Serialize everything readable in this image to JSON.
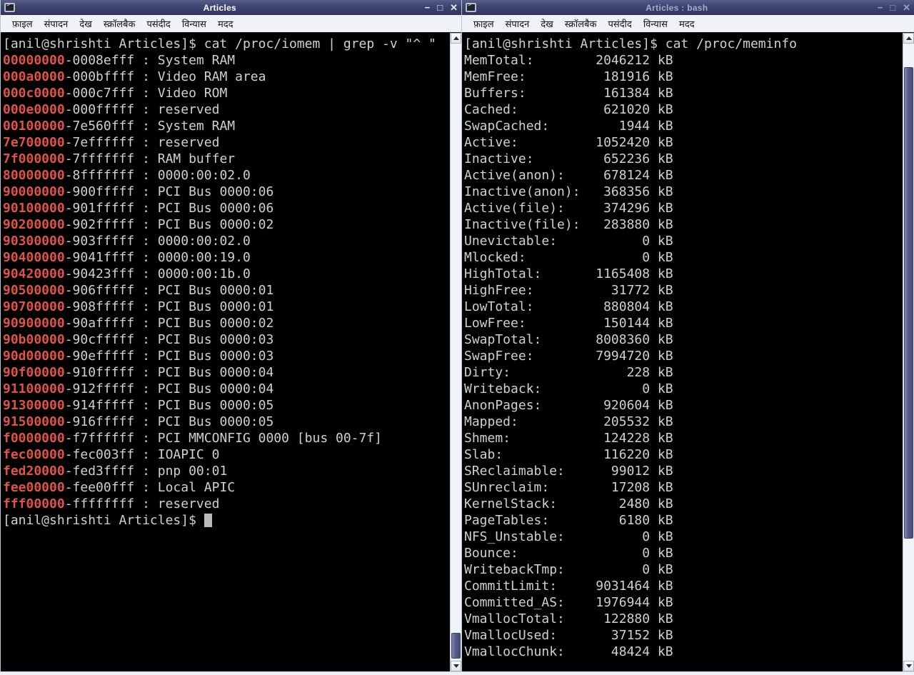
{
  "windows": {
    "left": {
      "title": "Articles",
      "active": true,
      "menu": [
        "फ़ाइल",
        "संपादन",
        "देख",
        "स्क्रॉलबैक",
        "पसंदीद",
        "विन्यास",
        "मदद"
      ],
      "controls": {
        "minimize": "−",
        "maximize": "□",
        "close": "✕"
      },
      "terminal": {
        "command_line": {
          "prompt": "[anil@shrishti Articles]$",
          "command": "cat /proc/iomem | grep -v \"^ \""
        },
        "iomem": [
          {
            "start": "00000000",
            "end": "0008efff",
            "desc": "System RAM"
          },
          {
            "start": "000a0000",
            "end": "000bffff",
            "desc": "Video RAM area"
          },
          {
            "start": "000c0000",
            "end": "000c7fff",
            "desc": "Video ROM"
          },
          {
            "start": "000e0000",
            "end": "000fffff",
            "desc": "reserved"
          },
          {
            "start": "00100000",
            "end": "7e560fff",
            "desc": "System RAM"
          },
          {
            "start": "7e700000",
            "end": "7effffff",
            "desc": "reserved"
          },
          {
            "start": "7f000000",
            "end": "7fffffff",
            "desc": "RAM buffer"
          },
          {
            "start": "80000000",
            "end": "8fffffff",
            "desc": "0000:00:02.0"
          },
          {
            "start": "90000000",
            "end": "900fffff",
            "desc": "PCI Bus 0000:06"
          },
          {
            "start": "90100000",
            "end": "901fffff",
            "desc": "PCI Bus 0000:06"
          },
          {
            "start": "90200000",
            "end": "902fffff",
            "desc": "PCI Bus 0000:02"
          },
          {
            "start": "90300000",
            "end": "903fffff",
            "desc": "0000:00:02.0"
          },
          {
            "start": "90400000",
            "end": "9041ffff",
            "desc": "0000:00:19.0"
          },
          {
            "start": "90420000",
            "end": "90423fff",
            "desc": "0000:00:1b.0"
          },
          {
            "start": "90500000",
            "end": "906fffff",
            "desc": "PCI Bus 0000:01"
          },
          {
            "start": "90700000",
            "end": "908fffff",
            "desc": "PCI Bus 0000:01"
          },
          {
            "start": "90900000",
            "end": "90afffff",
            "desc": "PCI Bus 0000:02"
          },
          {
            "start": "90b00000",
            "end": "90cfffff",
            "desc": "PCI Bus 0000:03"
          },
          {
            "start": "90d00000",
            "end": "90efffff",
            "desc": "PCI Bus 0000:03"
          },
          {
            "start": "90f00000",
            "end": "910fffff",
            "desc": "PCI Bus 0000:04"
          },
          {
            "start": "91100000",
            "end": "912fffff",
            "desc": "PCI Bus 0000:04"
          },
          {
            "start": "91300000",
            "end": "914fffff",
            "desc": "PCI Bus 0000:05"
          },
          {
            "start": "91500000",
            "end": "916fffff",
            "desc": "PCI Bus 0000:05"
          },
          {
            "start": "f0000000",
            "end": "f7ffffff",
            "desc": "PCI MMCONFIG 0000 [bus 00-7f]"
          },
          {
            "start": "fec00000",
            "end": "fec003ff",
            "desc": "IOAPIC 0"
          },
          {
            "start": "fed20000",
            "end": "fed3ffff",
            "desc": "pnp 00:01"
          },
          {
            "start": "fee00000",
            "end": "fee00fff",
            "desc": "Local APIC"
          },
          {
            "start": "fff00000",
            "end": "ffffffff",
            "desc": "reserved"
          }
        ],
        "trailing_prompt": "[anil@shrishti Articles]$"
      }
    },
    "right": {
      "title": "Articles : bash",
      "active": false,
      "menu": [
        "फ़ाइल",
        "संपादन",
        "देख",
        "स्क्रॉलबैक",
        "पसंदीद",
        "विन्यास",
        "मदद"
      ],
      "controls": {
        "minimize": "−",
        "maximize": "□",
        "close": "✕"
      },
      "terminal": {
        "command_line": {
          "prompt": "[anil@shrishti Articles]$",
          "command": "cat /proc/meminfo"
        },
        "meminfo": [
          {
            "label": "MemTotal:",
            "value": "2046212",
            "unit": "kB"
          },
          {
            "label": "MemFree:",
            "value": "181916",
            "unit": "kB"
          },
          {
            "label": "Buffers:",
            "value": "161384",
            "unit": "kB"
          },
          {
            "label": "Cached:",
            "value": "621020",
            "unit": "kB"
          },
          {
            "label": "SwapCached:",
            "value": "1944",
            "unit": "kB"
          },
          {
            "label": "Active:",
            "value": "1052420",
            "unit": "kB"
          },
          {
            "label": "Inactive:",
            "value": "652236",
            "unit": "kB"
          },
          {
            "label": "Active(anon):",
            "value": "678124",
            "unit": "kB"
          },
          {
            "label": "Inactive(anon):",
            "value": "368356",
            "unit": "kB"
          },
          {
            "label": "Active(file):",
            "value": "374296",
            "unit": "kB"
          },
          {
            "label": "Inactive(file):",
            "value": "283880",
            "unit": "kB"
          },
          {
            "label": "Unevictable:",
            "value": "0",
            "unit": "kB"
          },
          {
            "label": "Mlocked:",
            "value": "0",
            "unit": "kB"
          },
          {
            "label": "HighTotal:",
            "value": "1165408",
            "unit": "kB"
          },
          {
            "label": "HighFree:",
            "value": "31772",
            "unit": "kB"
          },
          {
            "label": "LowTotal:",
            "value": "880804",
            "unit": "kB"
          },
          {
            "label": "LowFree:",
            "value": "150144",
            "unit": "kB"
          },
          {
            "label": "SwapTotal:",
            "value": "8008360",
            "unit": "kB"
          },
          {
            "label": "SwapFree:",
            "value": "7994720",
            "unit": "kB"
          },
          {
            "label": "Dirty:",
            "value": "228",
            "unit": "kB"
          },
          {
            "label": "Writeback:",
            "value": "0",
            "unit": "kB"
          },
          {
            "label": "AnonPages:",
            "value": "920604",
            "unit": "kB"
          },
          {
            "label": "Mapped:",
            "value": "205532",
            "unit": "kB"
          },
          {
            "label": "Shmem:",
            "value": "124228",
            "unit": "kB"
          },
          {
            "label": "Slab:",
            "value": "116220",
            "unit": "kB"
          },
          {
            "label": "SReclaimable:",
            "value": "99012",
            "unit": "kB"
          },
          {
            "label": "SUnreclaim:",
            "value": "17208",
            "unit": "kB"
          },
          {
            "label": "KernelStack:",
            "value": "2480",
            "unit": "kB"
          },
          {
            "label": "PageTables:",
            "value": "6180",
            "unit": "kB"
          },
          {
            "label": "NFS_Unstable:",
            "value": "0",
            "unit": "kB"
          },
          {
            "label": "Bounce:",
            "value": "0",
            "unit": "kB"
          },
          {
            "label": "WritebackTmp:",
            "value": "0",
            "unit": "kB"
          },
          {
            "label": "CommitLimit:",
            "value": "9031464",
            "unit": "kB"
          },
          {
            "label": "Committed_AS:",
            "value": "1976944",
            "unit": "kB"
          },
          {
            "label": "VmallocTotal:",
            "value": "122880",
            "unit": "kB"
          },
          {
            "label": "VmallocUsed:",
            "value": "37152",
            "unit": "kB"
          },
          {
            "label": "VmallocChunk:",
            "value": "48424",
            "unit": "kB"
          }
        ]
      }
    }
  },
  "colors": {
    "terminal_bg": "#000000",
    "terminal_fg": "#d0d0d0",
    "address_red": "#df5348",
    "titlebar_blue": "#3f4672",
    "scrollbar_thumb": "#535b88",
    "menubar_bg": "#eff3f8"
  }
}
